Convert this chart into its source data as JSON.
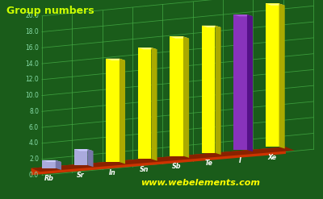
{
  "elements": [
    "Rb",
    "Sr",
    "In",
    "Sn",
    "Sb",
    "Te",
    "I",
    "Xe"
  ],
  "values": [
    1,
    2,
    13,
    14,
    15,
    16,
    17,
    18
  ],
  "bar_colors": [
    "#aaaadd",
    "#aaaadd",
    "#ffff00",
    "#ffff00",
    "#ffff00",
    "#ffff00",
    "#8833bb",
    "#ffff00"
  ],
  "bar_top_colors": [
    "#ccccff",
    "#ccccff",
    "#ffff88",
    "#ffff88",
    "#ffff88",
    "#ffff88",
    "#aa55dd",
    "#ffff88"
  ],
  "bar_side_colors": [
    "#7777aa",
    "#7777aa",
    "#aaaa00",
    "#aaaa00",
    "#aaaa00",
    "#aaaa00",
    "#551188",
    "#aaaa00"
  ],
  "title": "Group numbers",
  "title_color": "#ccff00",
  "bg_color": "#1a5c1a",
  "grid_color": "#44aa44",
  "axis_label_color": "#88ddaa",
  "xlabel_color": "#ffffff",
  "watermark": "www.webelements.com",
  "watermark_color": "#ffff00",
  "platform_color": "#cc3300",
  "platform_side_color": "#882200",
  "ymax": 20.0,
  "yticks": [
    0.0,
    2.0,
    4.0,
    6.0,
    8.0,
    10.0,
    12.0,
    14.0,
    16.0,
    18.0,
    20.0
  ]
}
